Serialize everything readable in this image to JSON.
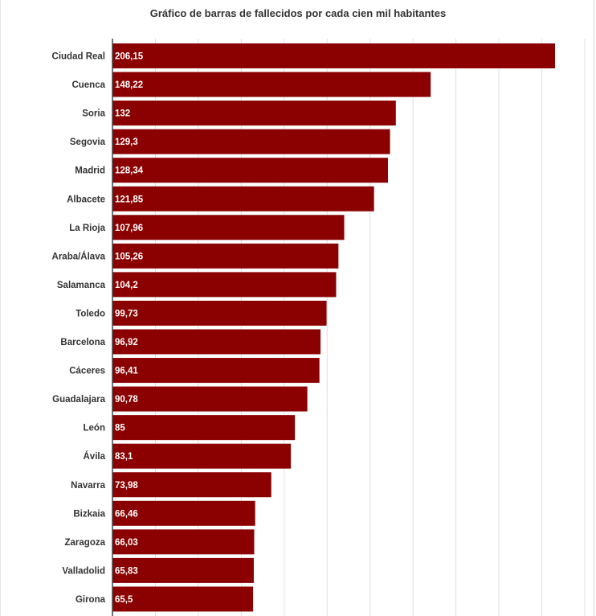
{
  "chart_data": {
    "type": "bar",
    "orientation": "horizontal",
    "title": "Gráfico de barras de fallecidos por cada cien mil habitantes",
    "categories": [
      "Ciudad Real",
      "Cuenca",
      "Soria",
      "Segovia",
      "Madrid",
      "Albacete",
      "La Rioja",
      "Araba/Álava",
      "Salamanca",
      "Toledo",
      "Barcelona",
      "Cáceres",
      "Guadalajara",
      "León",
      "Ávila",
      "Navarra",
      "Bizkaia",
      "Zaragoza",
      "Valladolid",
      "Girona"
    ],
    "values": [
      206.15,
      148.22,
      132,
      129.3,
      128.34,
      121.85,
      107.96,
      105.26,
      104.2,
      99.73,
      96.92,
      96.41,
      90.78,
      85,
      83.1,
      73.98,
      66.46,
      66.03,
      65.83,
      65.5
    ],
    "value_labels": [
      "206,15",
      "148,22",
      "132",
      "129,3",
      "128,34",
      "121,85",
      "107,96",
      "105,26",
      "104,2",
      "99,73",
      "96,92",
      "96,41",
      "90,78",
      "85",
      "83,1",
      "73,98",
      "66,46",
      "66,03",
      "65,83",
      "65,5"
    ],
    "xlim": [
      0,
      220
    ],
    "grid": true,
    "legend": "none",
    "colors": {
      "bar": "#8b0000",
      "grid": "#e0e0e0",
      "axis": "#444444"
    }
  }
}
